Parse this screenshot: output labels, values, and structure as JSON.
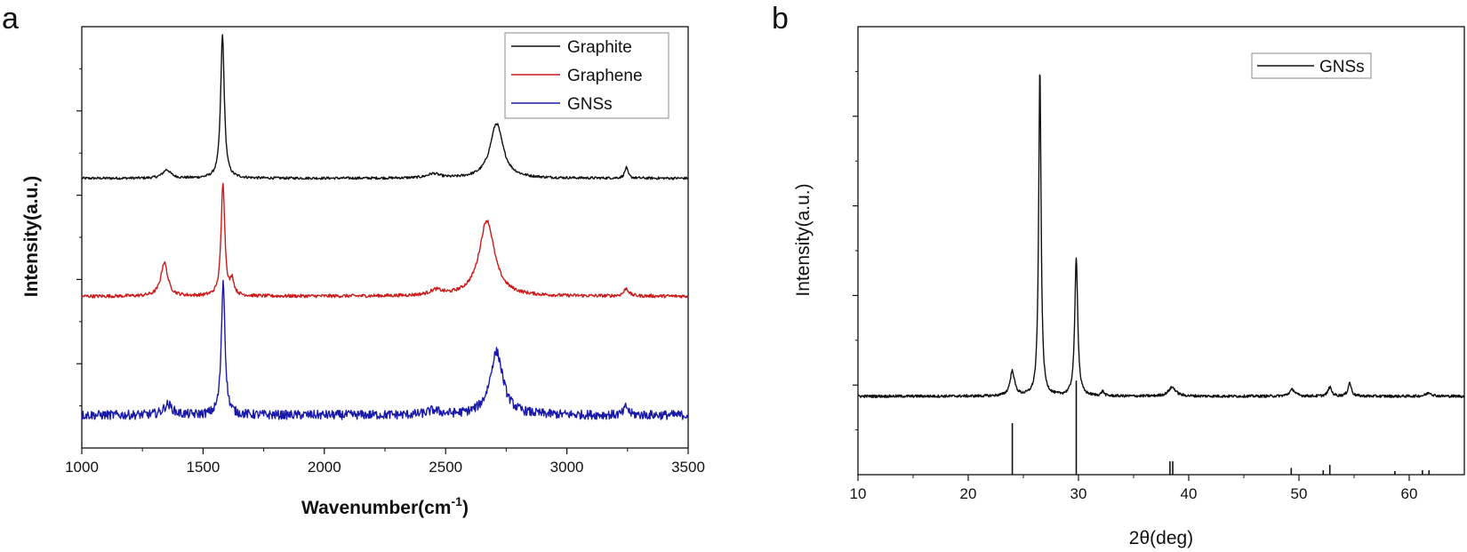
{
  "panels": {
    "a": {
      "letter": "a",
      "xlabel": "Wavenumber(cm",
      "xlabel_sup": "-1",
      "xlabel_close": ")",
      "ylabel": "Intensity(a.u.)"
    },
    "b": {
      "letter": "b",
      "xlabel": "2θ(deg)",
      "ylabel": "Intensity(a.u.)"
    }
  },
  "chart_data": [
    {
      "type": "line",
      "title": "",
      "xlabel": "Wavenumber(cm-1)",
      "ylabel": "Intensity(a.u.)",
      "xlim": [
        1000,
        3500
      ],
      "xticks": [
        1000,
        1500,
        2000,
        2500,
        3000,
        3500
      ],
      "yticks_labeled": false,
      "ylim": [
        0,
        1
      ],
      "legend_position": "top-right",
      "series": [
        {
          "name": "Graphite",
          "color": "#111111",
          "baseline": 0.64,
          "noise": 0.003,
          "peaks": [
            {
              "center": 1350,
              "height": 0.02,
              "width": 20
            },
            {
              "center": 1580,
              "height": 0.34,
              "width": 9
            },
            {
              "center": 2450,
              "height": 0.01,
              "width": 30
            },
            {
              "center": 2710,
              "height": 0.13,
              "width": 32
            },
            {
              "center": 3245,
              "height": 0.025,
              "width": 8
            }
          ]
        },
        {
          "name": "Graphene",
          "color": "#cc1a1a",
          "baseline": 0.36,
          "noise": 0.004,
          "peaks": [
            {
              "center": 1340,
              "height": 0.08,
              "width": 17
            },
            {
              "center": 1582,
              "height": 0.27,
              "width": 9
            },
            {
              "center": 1620,
              "height": 0.035,
              "width": 9
            },
            {
              "center": 2460,
              "height": 0.012,
              "width": 30
            },
            {
              "center": 2670,
              "height": 0.18,
              "width": 38
            },
            {
              "center": 3245,
              "height": 0.018,
              "width": 12
            }
          ]
        },
        {
          "name": "GNSs",
          "color": "#1a1aaa",
          "baseline": 0.078,
          "noise": 0.011,
          "peaks": [
            {
              "center": 1355,
              "height": 0.025,
              "width": 22
            },
            {
              "center": 1583,
              "height": 0.32,
              "width": 9
            },
            {
              "center": 2450,
              "height": 0.01,
              "width": 30
            },
            {
              "center": 2710,
              "height": 0.15,
              "width": 32
            },
            {
              "center": 3245,
              "height": 0.02,
              "width": 10
            }
          ]
        }
      ]
    },
    {
      "type": "line",
      "title": "",
      "xlabel": "2θ(deg)",
      "ylabel": "Intensity(a.u.)",
      "xlim": [
        10,
        65
      ],
      "xticks": [
        10,
        20,
        30,
        40,
        50,
        60
      ],
      "yticks_labeled": false,
      "ylim": [
        0,
        1
      ],
      "legend_position": "top-right",
      "series": [
        {
          "name": "GNSs",
          "color": "#111111",
          "baseline": 0.175,
          "noise": 0.003,
          "peaks": [
            {
              "center": 24.0,
              "height": 0.055,
              "width": 0.25
            },
            {
              "center": 26.5,
              "height": 0.73,
              "width": 0.13
            },
            {
              "center": 29.8,
              "height": 0.31,
              "width": 0.16
            },
            {
              "center": 32.2,
              "height": 0.01,
              "width": 0.15
            },
            {
              "center": 38.5,
              "height": 0.02,
              "width": 0.4
            },
            {
              "center": 49.4,
              "height": 0.015,
              "width": 0.3
            },
            {
              "center": 52.8,
              "height": 0.02,
              "width": 0.2
            },
            {
              "center": 54.6,
              "height": 0.03,
              "width": 0.18
            },
            {
              "center": 61.8,
              "height": 0.008,
              "width": 0.3
            }
          ]
        }
      ],
      "reference_lines": [
        {
          "x": 24.0,
          "height": 0.115
        },
        {
          "x": 29.8,
          "height": 0.21
        },
        {
          "x": 38.3,
          "height": 0.03
        },
        {
          "x": 38.55,
          "height": 0.03
        },
        {
          "x": 49.3,
          "height": 0.015
        },
        {
          "x": 52.2,
          "height": 0.01
        },
        {
          "x": 52.8,
          "height": 0.022
        },
        {
          "x": 58.7,
          "height": 0.008
        },
        {
          "x": 61.2,
          "height": 0.01
        },
        {
          "x": 61.8,
          "height": 0.01
        }
      ]
    }
  ]
}
